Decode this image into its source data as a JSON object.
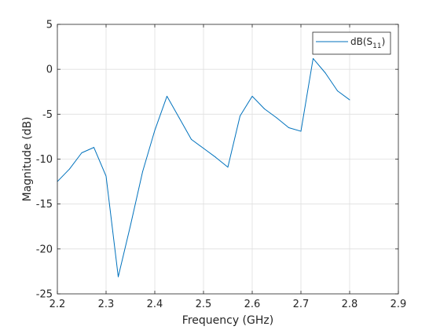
{
  "chart_data": {
    "type": "line",
    "xlabel": "Frequency (GHz)",
    "ylabel": "Magnitude (dB)",
    "xlim": [
      2.2,
      2.9
    ],
    "ylim": [
      -25,
      5
    ],
    "xticks": [
      "2.2",
      "2.3",
      "2.4",
      "2.5",
      "2.6",
      "2.7",
      "2.8",
      "2.9"
    ],
    "yticks": [
      "-25",
      "-20",
      "-15",
      "-10",
      "-5",
      "0",
      "5"
    ],
    "grid": true,
    "legend_position": "top-right",
    "legend": {
      "prefix": "dB(S",
      "subscript": "11",
      "suffix": ")"
    },
    "series": [
      {
        "name": "dB(S11)",
        "color": "#0072BD",
        "x": [
          2.2,
          2.225,
          2.25,
          2.275,
          2.3,
          2.325,
          2.35,
          2.375,
          2.4,
          2.425,
          2.45,
          2.475,
          2.5,
          2.525,
          2.55,
          2.575,
          2.6,
          2.625,
          2.65,
          2.675,
          2.7,
          2.725,
          2.75,
          2.775,
          2.8
        ],
        "y": [
          -12.5,
          -11.1,
          -9.3,
          -8.7,
          -11.9,
          -23.1,
          -17.4,
          -11.4,
          -6.8,
          -3.0,
          -5.4,
          -7.8,
          -8.8,
          -9.8,
          -10.9,
          -5.2,
          -3.0,
          -4.4,
          -5.4,
          -6.5,
          -6.9,
          1.2,
          -0.4,
          -2.4,
          -3.4
        ]
      }
    ]
  }
}
